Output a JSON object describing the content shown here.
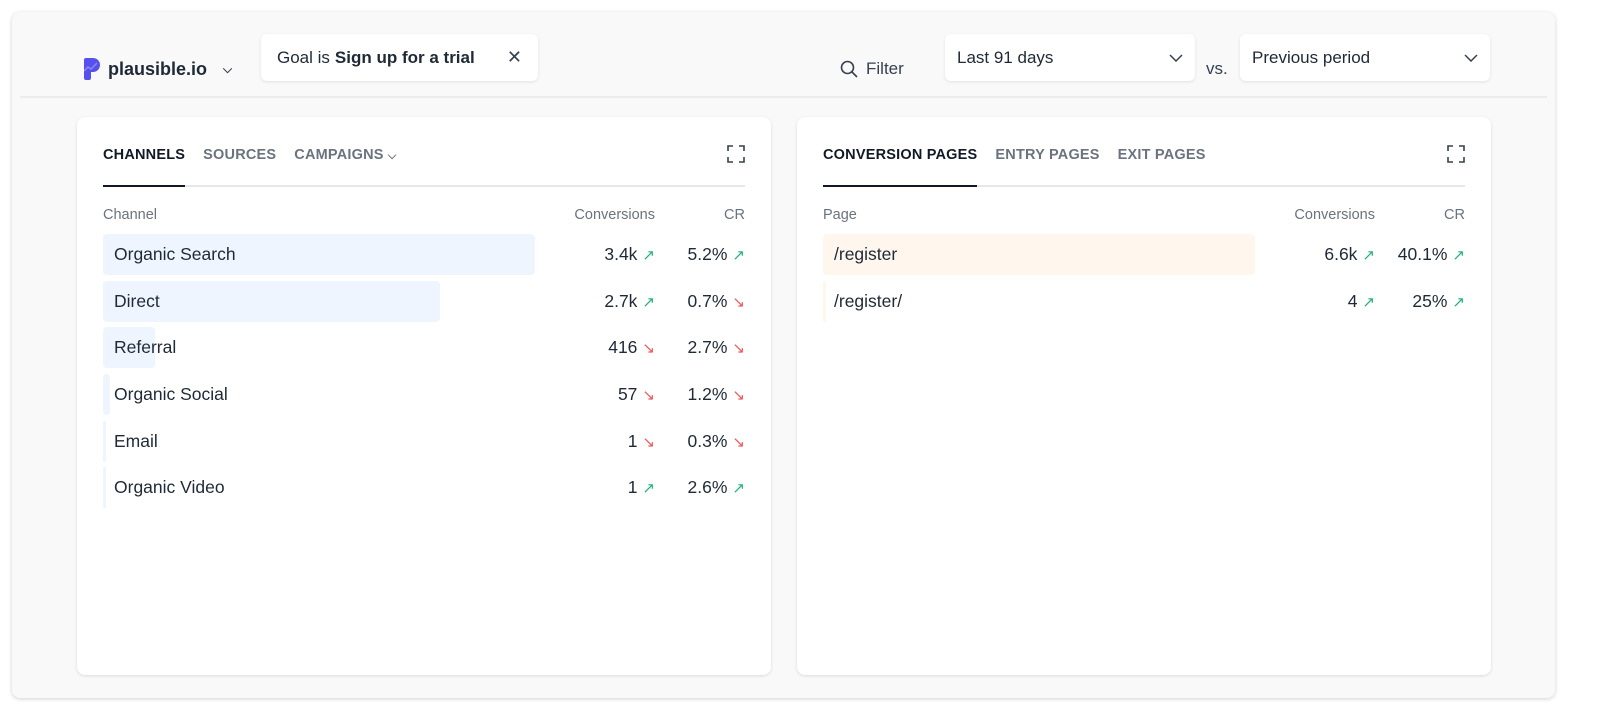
{
  "header": {
    "site": "plausible.io",
    "goal_prefix": "Goal is",
    "goal_value": "Sign up for a trial",
    "filter_label": "Filter",
    "period": "Last 91 days",
    "vs": "vs.",
    "comparison": "Previous period"
  },
  "colors": {
    "brand": "#5850ec",
    "bar_sources": "#eef5fe",
    "bar_pages": "#fff7ed",
    "up": "#22b573",
    "down": "#ef5a5a"
  },
  "sources": {
    "tabs": [
      "CHANNELS",
      "SOURCES",
      "CAMPAIGNS"
    ],
    "active": 0,
    "columns": [
      "Channel",
      "Conversions",
      "CR"
    ],
    "rows": [
      {
        "name": "Organic Search",
        "conversions": "3.4k",
        "conv_trend": "up",
        "cr": "5.2%",
        "cr_trend": "up",
        "bar_fraction": 1.0
      },
      {
        "name": "Direct",
        "conversions": "2.7k",
        "conv_trend": "up",
        "cr": "0.7%",
        "cr_trend": "down",
        "bar_fraction": 0.78
      },
      {
        "name": "Referral",
        "conversions": "416",
        "conv_trend": "down",
        "cr": "2.7%",
        "cr_trend": "down",
        "bar_fraction": 0.12
      },
      {
        "name": "Organic Social",
        "conversions": "57",
        "conv_trend": "down",
        "cr": "1.2%",
        "cr_trend": "down",
        "bar_fraction": 0.017
      },
      {
        "name": "Email",
        "conversions": "1",
        "conv_trend": "down",
        "cr": "0.3%",
        "cr_trend": "down",
        "bar_fraction": 0.0003
      },
      {
        "name": "Organic Video",
        "conversions": "1",
        "conv_trend": "up",
        "cr": "2.6%",
        "cr_trend": "up",
        "bar_fraction": 0.0003
      }
    ]
  },
  "pages": {
    "tabs": [
      "CONVERSION PAGES",
      "ENTRY PAGES",
      "EXIT PAGES"
    ],
    "active": 0,
    "columns": [
      "Page",
      "Conversions",
      "CR"
    ],
    "rows": [
      {
        "name": "/register",
        "conversions": "6.6k",
        "conv_trend": "up",
        "cr": "40.1%",
        "cr_trend": "up",
        "bar_fraction": 1.0
      },
      {
        "name": "/register/",
        "conversions": "4",
        "conv_trend": "up",
        "cr": "25%",
        "cr_trend": "up",
        "bar_fraction": 0.0006
      }
    ]
  }
}
